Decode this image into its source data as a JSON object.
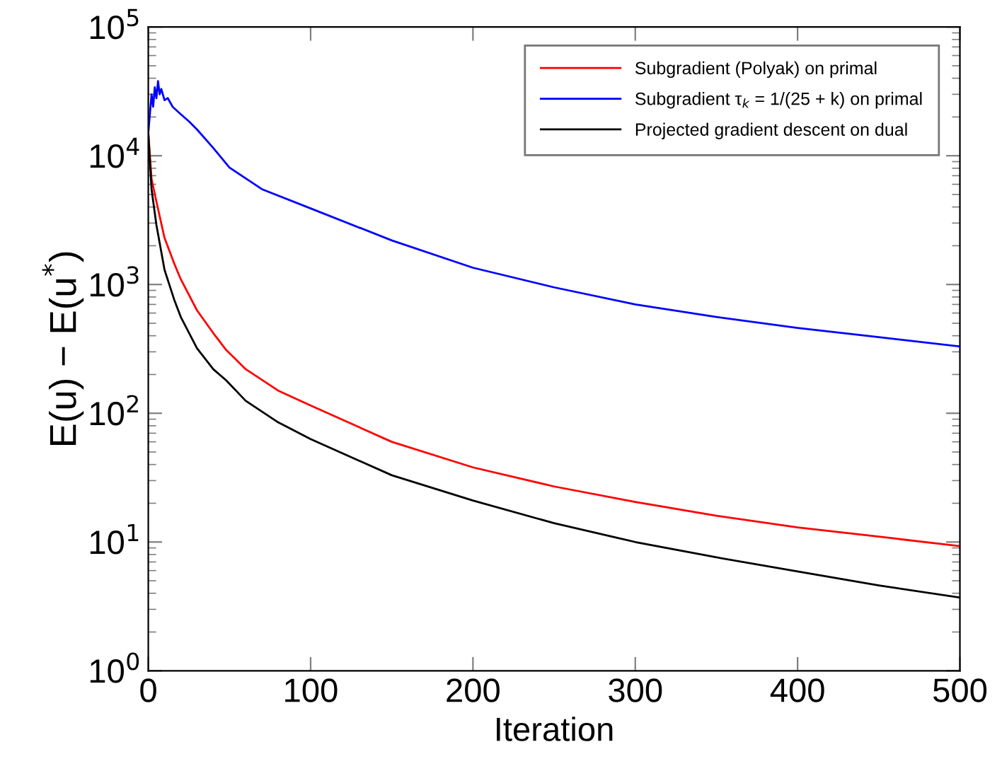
{
  "chart_data": {
    "type": "line",
    "xlabel": "Iteration",
    "ylabel": "E(u) − E(u$^{*}$)",
    "log": "y",
    "xlim": [
      0,
      500
    ],
    "ylim": [
      1,
      100000
    ],
    "xticks": [
      0,
      100,
      200,
      300,
      400,
      500
    ],
    "yticks": [
      {
        "value": 1,
        "label": "10$^{0}$"
      },
      {
        "value": 10,
        "label": "10$^{1}$"
      },
      {
        "value": 100,
        "label": "10$^{2}$"
      },
      {
        "value": 1000,
        "label": "10$^{3}$"
      },
      {
        "value": 10000,
        "label": "10$^{4}$"
      },
      {
        "value": 100000,
        "label": "10$^{5}$"
      }
    ],
    "grid": false,
    "legend": "top right",
    "marker": "none",
    "line_style": "solid",
    "series": [
      {
        "name": "Subgradient (Polyak) on primal",
        "color": "#ff0000",
        "x": [
          0,
          2,
          5,
          10,
          16,
          20,
          30,
          40,
          48,
          60,
          80,
          100,
          150,
          200,
          250,
          300,
          350,
          400,
          450,
          500
        ],
        "values": [
          15000,
          6600,
          4400,
          2300,
          1450,
          1100,
          630,
          420,
          310,
          220,
          150,
          115,
          60,
          38,
          27,
          20.5,
          16,
          13,
          11,
          9.3
        ]
      },
      {
        "name": "Subgradient τ$_{k}$ = 1/(25 + k) on primal",
        "color": "#0000ff",
        "x": [
          0,
          2,
          3,
          4,
          5,
          6,
          7,
          8,
          10,
          12,
          15,
          20,
          25,
          30,
          40,
          50,
          70,
          100,
          150,
          200,
          250,
          300,
          350,
          400,
          450,
          500
        ],
        "values": [
          15000,
          30000,
          24000,
          34000,
          28000,
          38000,
          30000,
          33000,
          27000,
          28000,
          24000,
          21000,
          18500,
          16000,
          11500,
          8100,
          5500,
          3900,
          2200,
          1350,
          950,
          700,
          560,
          460,
          390,
          330
        ]
      },
      {
        "name": "Projected gradient descent on dual",
        "color": "#000000",
        "x": [
          0,
          2,
          5,
          10,
          16,
          20,
          30,
          40,
          48,
          60,
          80,
          100,
          150,
          200,
          250,
          300,
          350,
          400,
          450,
          500
        ],
        "values": [
          15000,
          5500,
          2900,
          1300,
          760,
          560,
          320,
          220,
          180,
          125,
          85,
          63,
          33,
          21,
          14,
          10,
          7.6,
          5.9,
          4.6,
          3.7
        ]
      }
    ]
  }
}
